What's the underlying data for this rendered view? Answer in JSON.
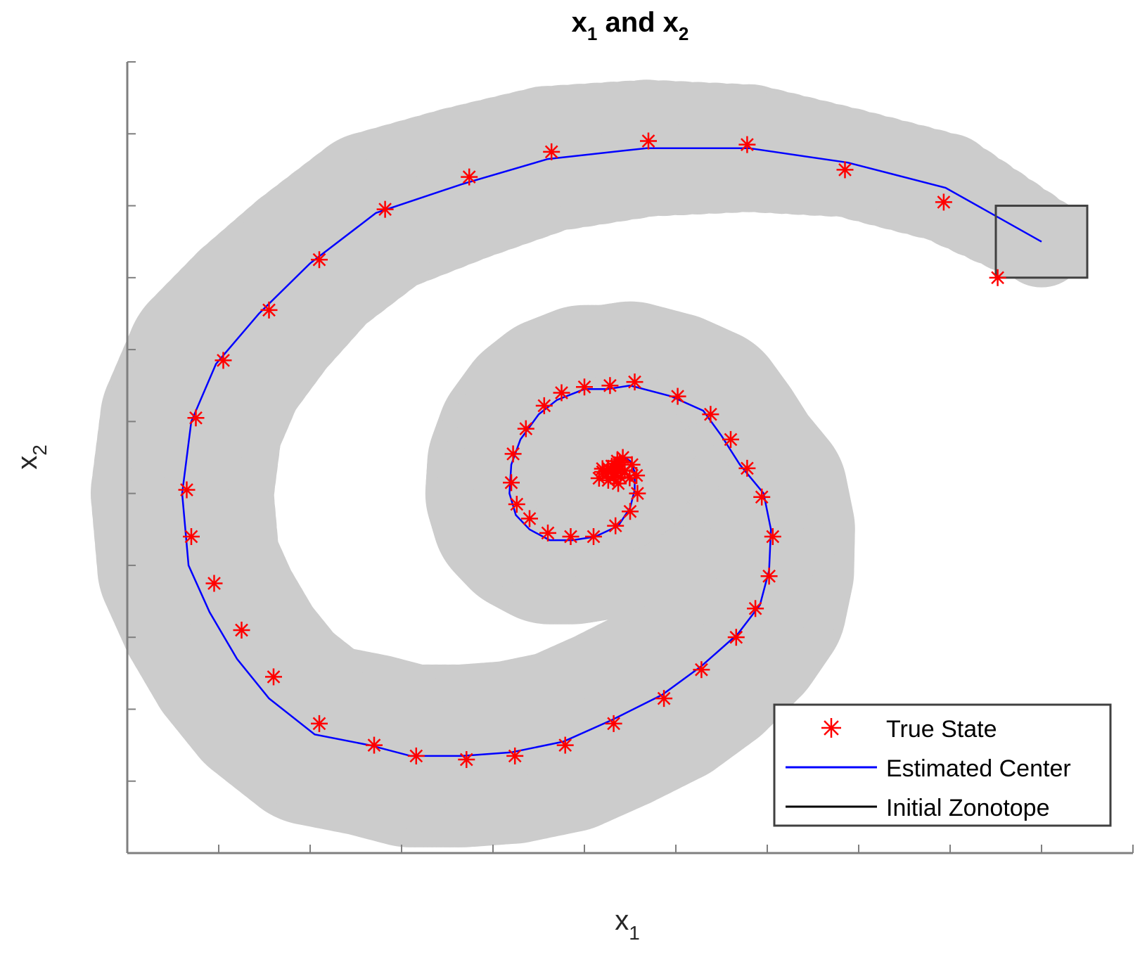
{
  "chart_data": {
    "type": "scatter",
    "title": {
      "base_1": "x",
      "sub_1": "1",
      "connector": " and ",
      "base_2": "x",
      "sub_2": "2"
    },
    "xlabel": {
      "base": "x",
      "sub": "1"
    },
    "ylabel": {
      "base": "x",
      "sub": "2"
    },
    "x_ticks": [
      -9,
      -8,
      -7,
      -6,
      -5,
      -4,
      -3,
      -2,
      -1,
      0,
      1
    ],
    "y_ticks": [
      -10,
      -9,
      -8,
      -7,
      -6,
      -5,
      -4,
      -3,
      -2,
      -1,
      0
    ],
    "xlim": [
      -10,
      1
    ],
    "ylim": [
      -11,
      0
    ],
    "tick_labels_shown": false,
    "grid": false,
    "legend": {
      "placement": "bottom-right",
      "entries": [
        {
          "label": "True State",
          "marker": "star",
          "color": "#ff0000"
        },
        {
          "label": "Estimated Center",
          "marker": "line",
          "color": "#0000ff"
        },
        {
          "label": "Initial Zonotope",
          "marker": "line",
          "color": "#000000"
        }
      ]
    },
    "colors": {
      "true_state": "#ff0000",
      "estimated_center": "#0000ff",
      "initial_zonotope": "#404040",
      "reachable_sets": "#cccccc"
    },
    "initial_zonotope": {
      "x_range": [
        -0.5,
        0.5
      ],
      "y_range": [
        -3.0,
        -2.0
      ]
    },
    "estimated_center": {
      "x": [
        0.0,
        -1.05,
        -2.12,
        -3.2,
        -4.32,
        -5.4,
        -6.34,
        -7.28,
        -8.0,
        -8.56,
        -9.03,
        -9.3,
        -9.4,
        -9.33,
        -9.1,
        -8.8,
        -8.45,
        -7.95,
        -7.35,
        -6.9,
        -6.34,
        -5.8,
        -5.23,
        -4.7,
        -4.15,
        -3.72,
        -3.32,
        -3.08,
        -2.98,
        -2.96,
        -3.04,
        -3.3,
        -3.5,
        -3.7,
        -4.05,
        -4.5,
        -4.75,
        -5.0,
        -5.3,
        -5.5,
        -5.7,
        -5.8,
        -5.82,
        -5.75,
        -5.6,
        -5.38,
        -5.13,
        -4.88,
        -4.63,
        -4.5,
        -4.45,
        -4.45,
        -4.5,
        -4.58,
        -4.65,
        -4.68,
        -4.7,
        -4.72
      ],
      "y": [
        -2.5,
        -1.75,
        -1.4,
        -1.2,
        -1.2,
        -1.35,
        -1.7,
        -2.1,
        -2.8,
        -3.5,
        -4.2,
        -5.0,
        -6.0,
        -7.0,
        -7.65,
        -8.3,
        -8.85,
        -9.35,
        -9.5,
        -9.65,
        -9.65,
        -9.6,
        -9.45,
        -9.15,
        -8.8,
        -8.4,
        -7.95,
        -7.55,
        -7.07,
        -6.5,
        -6.0,
        -5.6,
        -5.2,
        -4.85,
        -4.65,
        -4.5,
        -4.55,
        -4.55,
        -4.7,
        -4.9,
        -5.25,
        -5.6,
        -6.0,
        -6.3,
        -6.5,
        -6.65,
        -6.65,
        -6.6,
        -6.45,
        -6.2,
        -5.95,
        -5.7,
        -5.55,
        -5.48,
        -5.52,
        -5.6,
        -5.65,
        -5.65
      ]
    },
    "true_state": {
      "x": [
        -0.48,
        -1.07,
        -2.15,
        -3.22,
        -4.3,
        -5.36,
        -6.26,
        -7.18,
        -7.9,
        -8.45,
        -8.95,
        -9.25,
        -9.35,
        -9.3,
        -9.05,
        -8.75,
        -8.4,
        -7.9,
        -7.3,
        -6.84,
        -6.29,
        -5.76,
        -5.21,
        -4.68,
        -4.13,
        -3.72,
        -3.34,
        -3.13,
        -2.98,
        -2.94,
        -3.06,
        -3.22,
        -3.4,
        -3.62,
        -3.98,
        -4.45,
        -4.72,
        -5.0,
        -5.25,
        -5.44,
        -5.64,
        -5.78,
        -5.8,
        -5.74,
        -5.6,
        -5.4,
        -5.15,
        -4.9,
        -4.66,
        -4.5,
        -4.42,
        -4.43,
        -4.48,
        -4.58,
        -4.64,
        -4.65,
        -4.7,
        -4.74,
        -4.62,
        -4.8,
        -4.68
      ],
      "y": [
        -3.0,
        -1.95,
        -1.5,
        -1.15,
        -1.1,
        -1.25,
        -1.6,
        -2.05,
        -2.75,
        -3.45,
        -4.15,
        -4.95,
        -5.95,
        -6.6,
        -7.25,
        -7.9,
        -8.55,
        -9.2,
        -9.5,
        -9.65,
        -9.7,
        -9.65,
        -9.5,
        -9.2,
        -8.85,
        -8.45,
        -8.0,
        -7.6,
        -7.15,
        -6.6,
        -6.05,
        -5.65,
        -5.25,
        -4.9,
        -4.65,
        -4.45,
        -4.5,
        -4.52,
        -4.6,
        -4.78,
        -5.1,
        -5.45,
        -5.85,
        -6.15,
        -6.35,
        -6.55,
        -6.6,
        -6.6,
        -6.45,
        -6.25,
        -6.0,
        -5.75,
        -5.6,
        -5.5,
        -5.55,
        -5.62,
        -5.68,
        -5.65,
        -5.6,
        -5.7,
        -5.72
      ]
    },
    "reachable_set_radii": [
      0.5,
      0.6,
      0.6,
      0.7,
      0.75,
      0.8,
      0.85,
      0.9,
      0.9,
      0.95,
      1.0,
      1.0,
      1.0,
      1.0,
      1.0,
      1.0,
      1.0,
      1.0,
      1.0,
      1.0,
      1.0,
      1.0,
      1.0,
      1.0,
      1.0,
      1.0,
      0.97,
      0.95,
      0.93,
      0.92,
      0.92,
      0.92,
      0.92,
      0.92,
      0.92,
      0.92,
      0.92,
      0.92,
      0.92,
      0.92,
      0.92,
      0.92,
      0.92,
      0.92,
      0.92,
      0.92,
      0.92,
      0.92,
      0.92,
      0.92,
      0.92,
      0.92,
      0.92,
      0.92,
      0.92,
      0.92,
      0.92,
      0.92
    ]
  }
}
